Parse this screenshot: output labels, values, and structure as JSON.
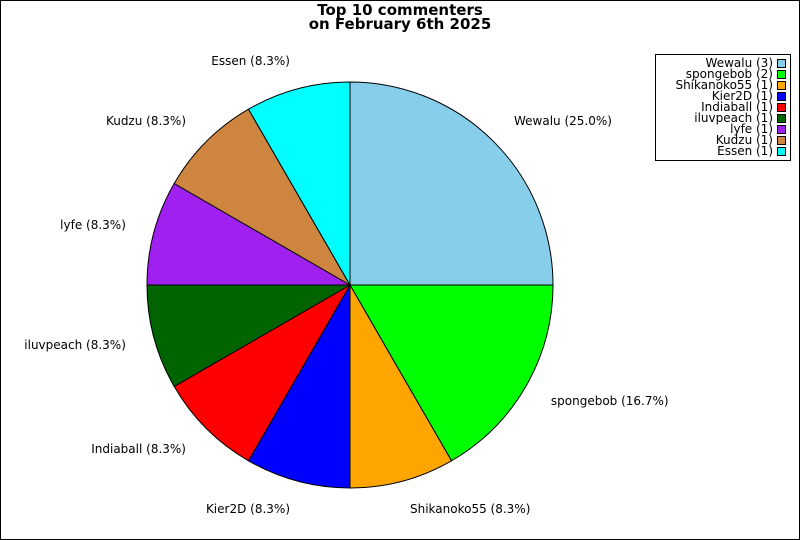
{
  "chart_data": {
    "type": "pie",
    "title_lines": [
      "Top 10 commenters",
      "on February 6th 2025"
    ],
    "slices": [
      {
        "name": "Wewalu",
        "count": 3,
        "percent_label": "25.0%",
        "color": "#87CEEB"
      },
      {
        "name": "spongebob",
        "count": 2,
        "percent_label": "16.7%",
        "color": "#00FF00"
      },
      {
        "name": "Shikanoko55",
        "count": 1,
        "percent_label": "8.3%",
        "color": "#FFA500"
      },
      {
        "name": "Kier2D",
        "count": 1,
        "percent_label": "8.3%",
        "color": "#0000FF"
      },
      {
        "name": "Indiaball",
        "count": 1,
        "percent_label": "8.3%",
        "color": "#FF0000"
      },
      {
        "name": "iluvpeach",
        "count": 1,
        "percent_label": "8.3%",
        "color": "#006400"
      },
      {
        "name": "lyfe",
        "count": 1,
        "percent_label": "8.3%",
        "color": "#A020F0"
      },
      {
        "name": "Kudzu",
        "count": 1,
        "percent_label": "8.3%",
        "color": "#CD853F"
      },
      {
        "name": "Essen",
        "count": 1,
        "percent_label": "8.3%",
        "color": "#00FFFF"
      }
    ],
    "legend": {
      "position": "top-right",
      "entries": [
        "Wewalu (3)",
        "spongebob (2)",
        "Shikanoko55 (1)",
        "Kier2D (1)",
        "Indiaball (1)",
        "iluvpeach (1)",
        "lyfe (1)",
        "Kudzu (1)",
        "Essen (1)"
      ]
    }
  }
}
